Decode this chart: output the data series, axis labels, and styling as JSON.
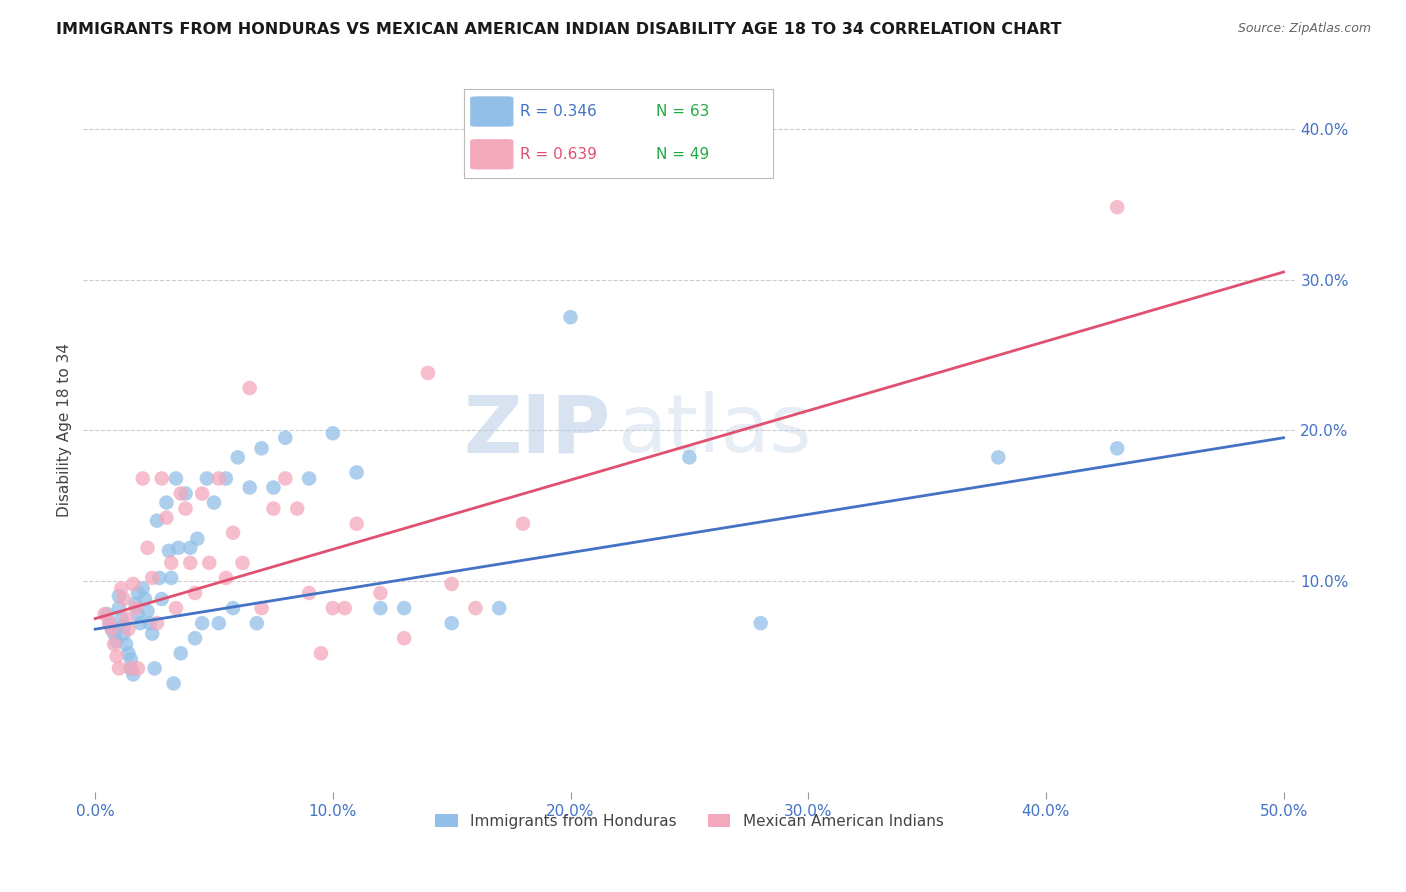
{
  "title": "IMMIGRANTS FROM HONDURAS VS MEXICAN AMERICAN INDIAN DISABILITY AGE 18 TO 34 CORRELATION CHART",
  "source": "Source: ZipAtlas.com",
  "xlabel_ticks": [
    "0.0%",
    "10.0%",
    "20.0%",
    "30.0%",
    "40.0%",
    "50.0%"
  ],
  "xlabel_vals": [
    0.0,
    0.1,
    0.2,
    0.3,
    0.4,
    0.5
  ],
  "ylabel_ticks": [
    "10.0%",
    "20.0%",
    "30.0%",
    "40.0%"
  ],
  "ylabel_vals": [
    0.1,
    0.2,
    0.3,
    0.4
  ],
  "xlim": [
    -0.005,
    0.505
  ],
  "ylim": [
    -0.04,
    0.44
  ],
  "blue_R": "0.346",
  "blue_N": "63",
  "pink_R": "0.639",
  "pink_N": "49",
  "blue_color": "#92bfe8",
  "pink_color": "#f4a8bc",
  "blue_line_color": "#4472c4",
  "pink_line_color": "#e05070",
  "legend_R_color_blue": "#4472c4",
  "legend_N_color": "#22aa44",
  "legend_R_color_pink": "#e05070",
  "ylabel": "Disability Age 18 to 34",
  "watermark_text": "ZIP",
  "watermark_text2": "atlas",
  "blue_scatter_x": [
    0.005,
    0.006,
    0.007,
    0.008,
    0.009,
    0.01,
    0.01,
    0.011,
    0.012,
    0.012,
    0.013,
    0.014,
    0.015,
    0.015,
    0.016,
    0.017,
    0.018,
    0.018,
    0.019,
    0.02,
    0.021,
    0.022,
    0.023,
    0.024,
    0.025,
    0.026,
    0.027,
    0.028,
    0.03,
    0.031,
    0.032,
    0.033,
    0.034,
    0.035,
    0.036,
    0.038,
    0.04,
    0.042,
    0.043,
    0.045,
    0.047,
    0.05,
    0.052,
    0.055,
    0.058,
    0.06,
    0.065,
    0.068,
    0.07,
    0.075,
    0.08,
    0.09,
    0.1,
    0.11,
    0.12,
    0.13,
    0.15,
    0.17,
    0.2,
    0.25,
    0.28,
    0.38,
    0.43
  ],
  "blue_scatter_y": [
    0.078,
    0.072,
    0.068,
    0.065,
    0.06,
    0.09,
    0.082,
    0.075,
    0.07,
    0.065,
    0.058,
    0.052,
    0.048,
    0.042,
    0.038,
    0.085,
    0.092,
    0.078,
    0.072,
    0.095,
    0.088,
    0.08,
    0.072,
    0.065,
    0.042,
    0.14,
    0.102,
    0.088,
    0.152,
    0.12,
    0.102,
    0.032,
    0.168,
    0.122,
    0.052,
    0.158,
    0.122,
    0.062,
    0.128,
    0.072,
    0.168,
    0.152,
    0.072,
    0.168,
    0.082,
    0.182,
    0.162,
    0.072,
    0.188,
    0.162,
    0.195,
    0.168,
    0.198,
    0.172,
    0.082,
    0.082,
    0.072,
    0.082,
    0.275,
    0.182,
    0.072,
    0.182,
    0.188
  ],
  "pink_scatter_x": [
    0.004,
    0.006,
    0.007,
    0.008,
    0.009,
    0.01,
    0.011,
    0.012,
    0.013,
    0.014,
    0.015,
    0.016,
    0.017,
    0.018,
    0.02,
    0.022,
    0.024,
    0.026,
    0.028,
    0.03,
    0.032,
    0.034,
    0.036,
    0.038,
    0.04,
    0.042,
    0.045,
    0.048,
    0.052,
    0.055,
    0.058,
    0.062,
    0.065,
    0.07,
    0.075,
    0.08,
    0.085,
    0.09,
    0.095,
    0.1,
    0.105,
    0.11,
    0.12,
    0.13,
    0.14,
    0.15,
    0.16,
    0.18,
    0.43
  ],
  "pink_scatter_y": [
    0.078,
    0.072,
    0.068,
    0.058,
    0.05,
    0.042,
    0.095,
    0.088,
    0.075,
    0.068,
    0.042,
    0.098,
    0.082,
    0.042,
    0.168,
    0.122,
    0.102,
    0.072,
    0.168,
    0.142,
    0.112,
    0.082,
    0.158,
    0.148,
    0.112,
    0.092,
    0.158,
    0.112,
    0.168,
    0.102,
    0.132,
    0.112,
    0.228,
    0.082,
    0.148,
    0.168,
    0.148,
    0.092,
    0.052,
    0.082,
    0.082,
    0.138,
    0.092,
    0.062,
    0.238,
    0.098,
    0.082,
    0.138,
    0.348
  ],
  "blue_line_x": [
    0.0,
    0.5
  ],
  "blue_line_y_start": 0.068,
  "blue_line_y_end": 0.195,
  "pink_line_y_start": 0.075,
  "pink_line_y_end": 0.305,
  "legend_label_blue": "Immigrants from Honduras",
  "legend_label_pink": "Mexican American Indians",
  "tick_color": "#4472c4",
  "axis_label_color": "#444444",
  "grid_color": "#cccccc",
  "title_fontsize": 11.5
}
